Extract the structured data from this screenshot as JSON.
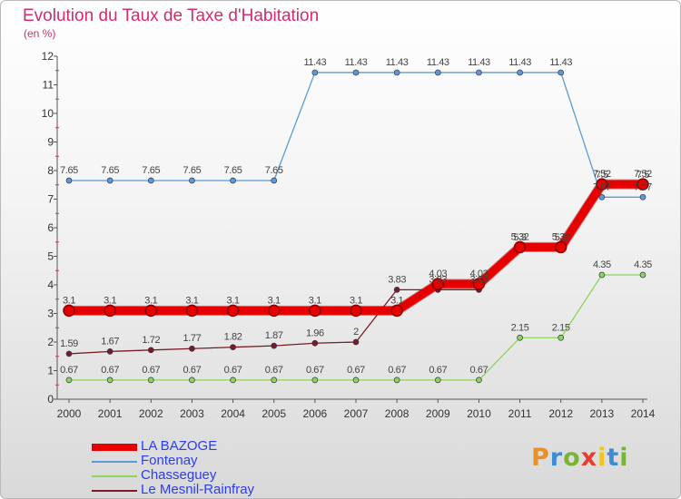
{
  "title": "Evolution du Taux de Taxe d'Habitation",
  "unit": "(en %)",
  "logo": {
    "text": "Proxiti",
    "colors": [
      "#e8902a",
      "#3a8ed8",
      "#78b534",
      "#e53c2f",
      "#f0c419",
      "#3a8ed8",
      "#78b534"
    ]
  },
  "chart_data": {
    "type": "line",
    "x": [
      "2000",
      "2001",
      "2002",
      "2003",
      "2004",
      "2005",
      "2006",
      "2007",
      "2008",
      "2009",
      "2010",
      "2011",
      "2012",
      "2013",
      "2014"
    ],
    "ylim": [
      0,
      12
    ],
    "yticks": [
      0,
      1,
      2,
      3,
      4,
      5,
      6,
      7,
      8,
      9,
      10,
      11,
      12
    ],
    "step": true,
    "grid": false,
    "legend_position": "bottom-left",
    "series": [
      {
        "name": "LA BAZOGE",
        "color": "#e60000",
        "width": 9,
        "values": [
          3.1,
          3.1,
          3.1,
          3.1,
          3.1,
          3.1,
          3.1,
          3.1,
          3.1,
          4.03,
          4.03,
          5.32,
          5.32,
          7.52,
          7.52
        ],
        "labels": [
          "3.1",
          "3.1",
          "3.1",
          "3.1",
          "3.1",
          "3.1",
          "3.1",
          "3.1",
          "3.1",
          "4.03",
          "4.03",
          "5.32",
          "5.32",
          "7.52",
          "7.52"
        ]
      },
      {
        "name": "Fontenay",
        "color": "#5b9bd5",
        "width": 1.3,
        "values": [
          7.65,
          7.65,
          7.65,
          7.65,
          7.65,
          7.65,
          11.43,
          11.43,
          11.43,
          11.43,
          11.43,
          11.43,
          11.43,
          7.07,
          7.07
        ],
        "labels": [
          "7.65",
          "7.65",
          "7.65",
          "7.65",
          "7.65",
          "7.65",
          "11.43",
          "11.43",
          "11.43",
          "11.43",
          "11.43",
          "11.43",
          "11.43",
          "7.07",
          "7.07"
        ]
      },
      {
        "name": "Chasseguey",
        "color": "#8cd55a",
        "width": 1.3,
        "values": [
          0.67,
          0.67,
          0.67,
          0.67,
          0.67,
          0.67,
          0.67,
          0.67,
          0.67,
          0.67,
          0.67,
          2.15,
          2.15,
          4.35,
          4.35
        ],
        "labels": [
          "0.67",
          "0.67",
          "0.67",
          "0.67",
          "0.67",
          "0.67",
          "0.67",
          "0.67",
          "0.67",
          "0.67",
          "0.67",
          "2.15",
          "2.15",
          "4.35",
          "4.35"
        ]
      },
      {
        "name": "Le Mesnil-Rainfray",
        "color": "#7a1a24",
        "width": 1.3,
        "values": [
          1.59,
          1.67,
          1.72,
          1.77,
          1.82,
          1.87,
          1.96,
          2,
          3.83,
          3.83,
          3.83,
          5.3,
          5.3,
          7.5,
          7.5
        ],
        "labels": [
          "1.59",
          "1.67",
          "1.72",
          "1.77",
          "1.82",
          "1.87",
          "1.96",
          "2",
          "3.83",
          "3.83",
          "3.83",
          "5.3",
          "5.3",
          "7.5",
          "7.5"
        ]
      }
    ]
  }
}
